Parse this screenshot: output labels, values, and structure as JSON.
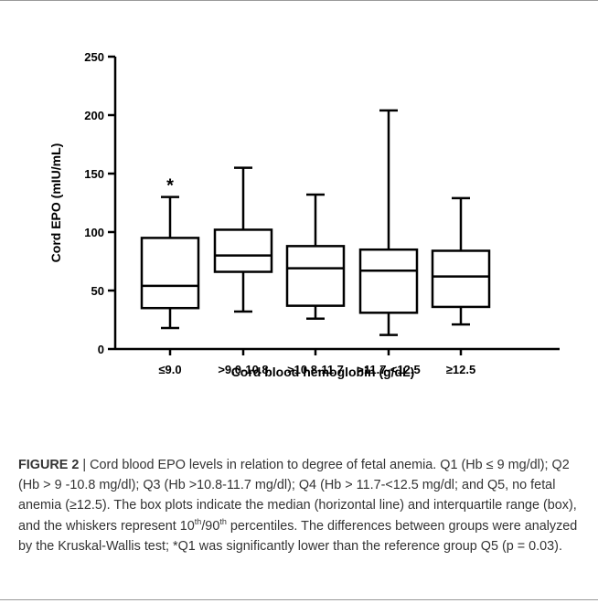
{
  "chart_data": {
    "type": "boxplot",
    "xlabel": "Cord blood hemoglobin (g/dL)",
    "ylabel": "Cord  EPO  (mIU/mL)",
    "ylim": [
      0,
      250
    ],
    "yticks": [
      "0",
      "50",
      "100",
      "150",
      "200",
      "250"
    ],
    "grid": false,
    "legend": "none",
    "categories": [
      "≤9.0",
      ">9.0-10.8",
      ">10.8-11.7",
      ">11.7-<12.5",
      "≥12.5"
    ],
    "boxes": [
      {
        "category": "≤9.0",
        "whisker_low": 18,
        "q1": 35,
        "median": 54,
        "q3": 95,
        "whisker_high": 130,
        "annotation": "*"
      },
      {
        "category": ">9.0-10.8",
        "whisker_low": 32,
        "q1": 66,
        "median": 80,
        "q3": 102,
        "whisker_high": 155,
        "annotation": ""
      },
      {
        "category": ">10.8-11.7",
        "whisker_low": 26,
        "q1": 37,
        "median": 69,
        "q3": 88,
        "whisker_high": 132,
        "annotation": ""
      },
      {
        "category": ">11.7-<12.5",
        "whisker_low": 12,
        "q1": 31,
        "median": 67,
        "q3": 85,
        "whisker_high": 204,
        "annotation": ""
      },
      {
        "category": "≥12.5",
        "whisker_low": 21,
        "q1": 36,
        "median": 62,
        "q3": 84,
        "whisker_high": 129,
        "annotation": ""
      }
    ]
  },
  "caption": {
    "label": "FIGURE 2",
    "separator": "|",
    "text_before_sup1": "Cord blood EPO levels in relation to degree of fetal anemia. Q1 (Hb ≤ 9 mg/dl); Q2 (Hb > 9 -10.8 mg/dl); Q3 (Hb >10.8-11.7 mg/dl); Q4 (Hb > 11.7-<12.5 mg/dl; and Q5, no fetal anemia (≥12.5). The box plots indicate the median (horizontal line) and interquartile range (box), and the whiskers represent 10",
    "sup1": "th",
    "text_between_sups": "/90",
    "sup2": "th",
    "text_after_sup2": " percentiles. The differences between groups were analyzed by the Kruskal-Wallis test; *Q1 was significantly lower than the reference group Q5 (p = 0.03)."
  }
}
